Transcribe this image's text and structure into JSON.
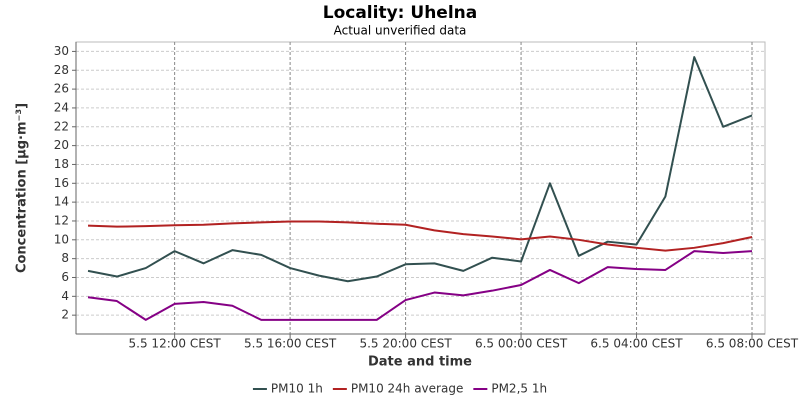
{
  "chart_data": {
    "type": "line",
    "title": "Locality: Uhelna",
    "subtitle": "Actual unverified data",
    "x_label": "Date and time",
    "y_label": "Concentration [µg·m⁻³]",
    "x": [
      "5.5 09:00 CEST",
      "5.5 10:00 CEST",
      "5.5 11:00 CEST",
      "5.5 12:00 CEST",
      "5.5 13:00 CEST",
      "5.5 14:00 CEST",
      "5.5 15:00 CEST",
      "5.5 16:00 CEST",
      "5.5 17:00 CEST",
      "5.5 18:00 CEST",
      "5.5 19:00 CEST",
      "5.5 20:00 CEST",
      "5.5 21:00 CEST",
      "5.5 22:00 CEST",
      "5.5 23:00 CEST",
      "6.5 00:00 CEST",
      "6.5 01:00 CEST",
      "6.5 02:00 CEST",
      "6.5 03:00 CEST",
      "6.5 04:00 CEST",
      "6.5 05:00 CEST",
      "6.5 06:00 CEST",
      "6.5 07:00 CEST",
      "6.5 08:00 CEST"
    ],
    "xlim": [
      "5.5 08:35 CEST",
      "6.5 08:27 CEST"
    ],
    "xticks": [
      "5.5 12:00 CEST",
      "5.5 16:00 CEST",
      "5.5 20:00 CEST",
      "6.5 00:00 CEST",
      "6.5 04:00 CEST",
      "6.5 08:00 CEST"
    ],
    "ylim": [
      0,
      31
    ],
    "yticks": [
      2,
      4,
      6,
      8,
      10,
      12,
      14,
      16,
      18,
      20,
      22,
      24,
      26,
      28,
      30
    ],
    "grid": true,
    "legend": "bottom",
    "series": [
      {
        "name": "PM10 1h",
        "color": "#325050",
        "values": [
          6.7,
          6.1,
          7.0,
          8.8,
          7.5,
          8.9,
          8.4,
          7.0,
          6.2,
          5.6,
          6.1,
          7.4,
          7.5,
          6.7,
          8.1,
          7.7,
          16.0,
          8.3,
          9.8,
          9.5,
          14.6,
          29.4,
          22.0,
          23.2
        ]
      },
      {
        "name": "PM10 24h average",
        "color": "#b22222",
        "values": [
          11.5,
          11.4,
          11.45,
          11.55,
          11.6,
          11.75,
          11.85,
          11.95,
          11.95,
          11.85,
          11.7,
          11.6,
          11.0,
          10.6,
          10.35,
          10.05,
          10.35,
          10.0,
          9.5,
          9.15,
          8.85,
          9.15,
          9.65,
          10.3
        ]
      },
      {
        "name": "PM2,5 1h",
        "color": "#850085",
        "values": [
          3.9,
          3.5,
          1.5,
          3.2,
          3.4,
          3.0,
          1.5,
          1.5,
          1.5,
          1.5,
          1.5,
          3.6,
          4.4,
          4.1,
          4.6,
          5.2,
          6.8,
          5.4,
          7.1,
          6.9,
          6.8,
          8.8,
          8.6,
          8.8
        ]
      }
    ]
  }
}
